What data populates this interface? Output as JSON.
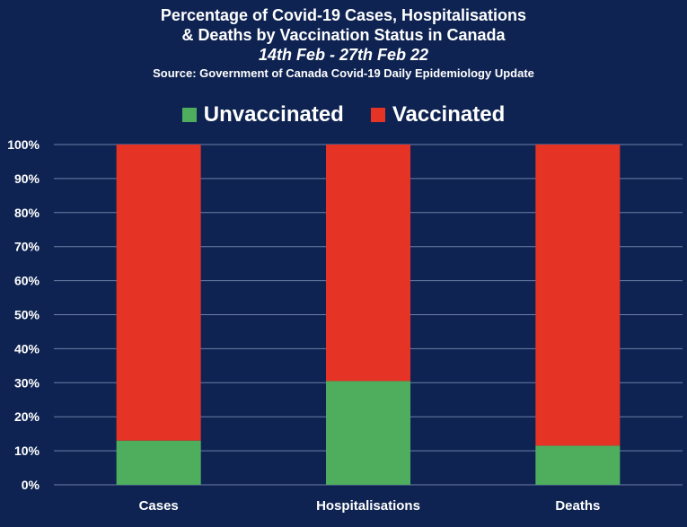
{
  "chart_data": {
    "type": "bar",
    "stacked": true,
    "title_line1": "Percentage of Covid-19 Cases, Hospitalisations",
    "title_line2": "& Deaths by Vaccination Status in Canada",
    "subtitle": "14th Feb - 27th Feb 22",
    "source": "Source: Government of Canada  Covid-19 Daily Epidemiology Update",
    "categories": [
      "Cases",
      "Hospitalisations",
      "Deaths"
    ],
    "series": [
      {
        "name": "Unvaccinated",
        "color": "#4fae5e",
        "values": [
          13,
          30.5,
          11.5
        ]
      },
      {
        "name": "Vaccinated",
        "color": "#e53325",
        "values": [
          87,
          69.5,
          88.5
        ]
      }
    ],
    "ylim": [
      0,
      100
    ],
    "yticks": [
      "0%",
      "10%",
      "20%",
      "30%",
      "40%",
      "50%",
      "60%",
      "70%",
      "80%",
      "90%",
      "100%"
    ],
    "grid": true,
    "legend_position": "top-center"
  }
}
